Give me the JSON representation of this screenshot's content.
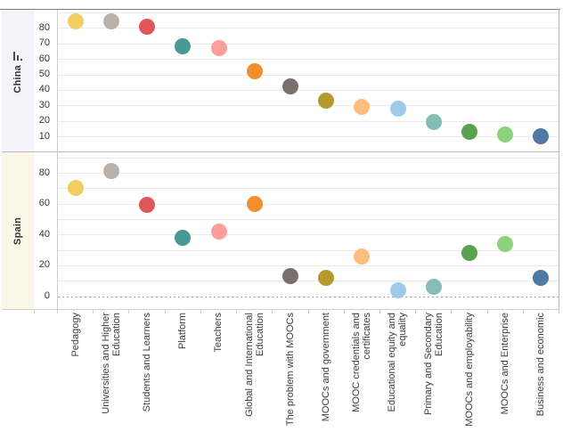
{
  "chart_data": {
    "type": "scatter",
    "title": "",
    "description": "Two stacked country panels (China, Spain) of colored dots, one dot per MOOC research theme category",
    "categories": [
      "Pedagogy",
      "Universities and Higher\nEducation",
      "Students and Learners",
      "Platform",
      "Teachers",
      "Global and International\nEducation",
      "The problem with MOOCs",
      "MOOCs and government",
      "MOOC credentials and\ncertificates",
      "Educational equity and\nequality",
      "Primary and Secondary\nEducation",
      "MOOCs and employability",
      "MOOCs and Enterprise",
      "Business and economic"
    ],
    "series": [
      {
        "name": "China",
        "values": [
          84,
          84,
          81,
          68,
          67,
          52,
          42,
          33,
          29,
          28,
          19,
          13,
          11,
          10
        ],
        "y_ticks": [
          10,
          20,
          30,
          40,
          50,
          60,
          70,
          80
        ],
        "ylim": [
          0,
          92
        ],
        "row_band_color": "#f4f3f9",
        "sorted_descending": true
      },
      {
        "name": "Spain",
        "values": [
          70,
          81,
          59,
          38,
          42,
          60,
          13,
          12,
          26,
          4,
          6,
          28,
          34,
          12
        ],
        "y_ticks": [
          0,
          20,
          40,
          60,
          80
        ],
        "ylim": [
          -8,
          94
        ],
        "row_band_color": "#fcf6e8",
        "sorted_descending": false
      }
    ],
    "point_colors": [
      "#F1CE63",
      "#BAB0AC",
      "#E15759",
      "#499894",
      "#FF9D9A",
      "#F28E2B",
      "#79706E",
      "#B6992D",
      "#FFBE7D",
      "#A0CBE8",
      "#86BCB6",
      "#59A14F",
      "#8CD17D",
      "#4E79A7"
    ],
    "grid": "horizontal gridlines every 10 units, light gray",
    "zero_line": "dashed gray line at 0 in Spain panel",
    "legend": "none"
  }
}
